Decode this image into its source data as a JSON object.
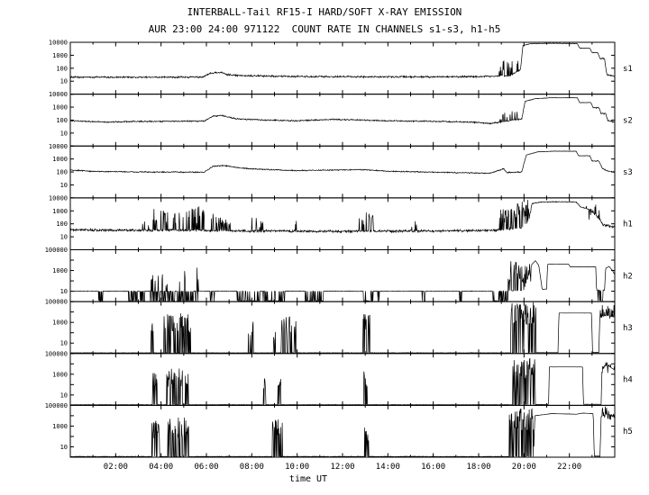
{
  "chart_data": {
    "type": "line",
    "title": "INTERBALL-Tail RF15-I HARD/SOFT X-RAY EMISSION",
    "subtitle": "AUR 23:00 24:00 971122  COUNT RATE IN CHANNELS s1-s3, h1-h5",
    "xlabel": "time UT",
    "y_scale": "log10",
    "background": "#ffffff",
    "axis_color": "#000000",
    "line_color": "#000000",
    "x_range_hours": [
      0,
      24
    ],
    "x_major_ticks": [
      {
        "hour": 2,
        "label": "02:00"
      },
      {
        "hour": 4,
        "label": "04:00"
      },
      {
        "hour": 6,
        "label": "06:00"
      },
      {
        "hour": 8,
        "label": "08:00"
      },
      {
        "hour": 10,
        "label": "10:00"
      },
      {
        "hour": 12,
        "label": "12:00"
      },
      {
        "hour": 14,
        "label": "14:00"
      },
      {
        "hour": 16,
        "label": "16:00"
      },
      {
        "hour": 18,
        "label": "18:00"
      },
      {
        "hour": 20,
        "label": "20:00"
      },
      {
        "hour": 22,
        "label": "22:00"
      }
    ],
    "panels": [
      {
        "id": "s1",
        "label": "s1",
        "log_range": [
          0,
          4
        ],
        "y_ticks": [
          10000,
          1000,
          100,
          10
        ],
        "noise": 0.08,
        "baseline": [
          [
            0,
            1.32
          ],
          [
            2,
            1.3
          ],
          [
            5.8,
            1.32
          ],
          [
            6.2,
            1.62
          ],
          [
            6.6,
            1.68
          ],
          [
            7.1,
            1.45
          ],
          [
            9,
            1.38
          ],
          [
            12,
            1.35
          ],
          [
            15,
            1.33
          ],
          [
            18,
            1.35
          ],
          [
            19.4,
            1.42
          ],
          [
            19.85,
            1.9
          ],
          [
            19.95,
            3.75
          ],
          [
            20.3,
            3.9
          ],
          [
            21.3,
            3.92
          ],
          [
            22.35,
            3.9
          ],
          [
            22.45,
            3.55
          ],
          [
            22.9,
            3.55
          ],
          [
            23.0,
            3.2
          ],
          [
            23.25,
            3.2
          ],
          [
            23.35,
            2.75
          ],
          [
            23.55,
            2.75
          ],
          [
            23.65,
            1.5
          ],
          [
            24,
            1.38
          ]
        ],
        "bursts": [
          [
            18.9,
            19.8,
            2.2,
            0.22,
            0.9
          ]
        ]
      },
      {
        "id": "s2",
        "label": "s2",
        "log_range": [
          0,
          4
        ],
        "y_ticks": [
          10000,
          1000,
          100,
          10
        ],
        "noise": 0.06,
        "baseline": [
          [
            0,
            1.95
          ],
          [
            1.5,
            1.85
          ],
          [
            3,
            1.9
          ],
          [
            5.9,
            1.92
          ],
          [
            6.3,
            2.3
          ],
          [
            6.7,
            2.35
          ],
          [
            7.3,
            2.1
          ],
          [
            8.5,
            2.0
          ],
          [
            10,
            1.95
          ],
          [
            11.5,
            2.05
          ],
          [
            12.5,
            2.02
          ],
          [
            14,
            1.95
          ],
          [
            16,
            1.9
          ],
          [
            17.5,
            1.85
          ],
          [
            18.6,
            1.75
          ],
          [
            19.3,
            1.95
          ],
          [
            19.9,
            2.1
          ],
          [
            20.05,
            3.45
          ],
          [
            20.5,
            3.65
          ],
          [
            21.2,
            3.72
          ],
          [
            22.35,
            3.72
          ],
          [
            22.45,
            3.35
          ],
          [
            22.95,
            3.35
          ],
          [
            23.05,
            2.95
          ],
          [
            23.3,
            2.95
          ],
          [
            23.4,
            2.5
          ],
          [
            23.6,
            2.5
          ],
          [
            23.7,
            1.95
          ],
          [
            24,
            1.85
          ]
        ],
        "bursts": [
          [
            18.9,
            19.7,
            2.35,
            0.18,
            0.7
          ]
        ]
      },
      {
        "id": "s3",
        "label": "s3",
        "log_range": [
          0,
          4
        ],
        "y_ticks": [
          10000,
          1000,
          100,
          10
        ],
        "noise": 0.05,
        "baseline": [
          [
            0,
            2.15
          ],
          [
            1,
            2.05
          ],
          [
            3,
            2.0
          ],
          [
            5.9,
            1.98
          ],
          [
            6.3,
            2.45
          ],
          [
            6.8,
            2.5
          ],
          [
            7.5,
            2.3
          ],
          [
            8.5,
            2.2
          ],
          [
            10,
            2.1
          ],
          [
            11.5,
            2.15
          ],
          [
            13,
            2.18
          ],
          [
            14,
            2.05
          ],
          [
            15.5,
            2.0
          ],
          [
            17,
            1.95
          ],
          [
            18.5,
            1.9
          ],
          [
            19.1,
            2.25
          ],
          [
            19.25,
            1.95
          ],
          [
            19.9,
            2.0
          ],
          [
            20.1,
            3.3
          ],
          [
            20.6,
            3.55
          ],
          [
            21.3,
            3.6
          ],
          [
            22.3,
            3.6
          ],
          [
            22.4,
            3.25
          ],
          [
            22.9,
            3.25
          ],
          [
            23.0,
            2.85
          ],
          [
            23.3,
            2.85
          ],
          [
            23.45,
            2.3
          ],
          [
            23.7,
            2.05
          ],
          [
            24,
            2.0
          ]
        ],
        "bursts": []
      },
      {
        "id": "h1",
        "label": "h1",
        "log_range": [
          0,
          4
        ],
        "y_ticks": [
          10000,
          1000,
          100,
          10
        ],
        "noise": 0.11,
        "baseline": [
          [
            0,
            1.55
          ],
          [
            2,
            1.5
          ],
          [
            5,
            1.5
          ],
          [
            8,
            1.45
          ],
          [
            12,
            1.42
          ],
          [
            16,
            1.45
          ],
          [
            18.8,
            1.5
          ],
          [
            19.9,
            1.7
          ],
          [
            20.2,
            2.2
          ],
          [
            20.35,
            3.55
          ],
          [
            20.7,
            3.68
          ],
          [
            21.5,
            3.7
          ],
          [
            22.3,
            3.68
          ],
          [
            22.5,
            3.3
          ],
          [
            22.9,
            3.1
          ],
          [
            23.2,
            2.6
          ],
          [
            23.5,
            1.9
          ],
          [
            24,
            1.75
          ]
        ],
        "bursts": [
          [
            3.1,
            3.5,
            2.3,
            0.3,
            1.0
          ],
          [
            3.6,
            4.3,
            2.6,
            0.32,
            1.2
          ],
          [
            4.5,
            5.0,
            2.5,
            0.3,
            1.1
          ],
          [
            5.1,
            5.9,
            2.7,
            0.3,
            1.3
          ],
          [
            6.2,
            7.1,
            2.3,
            0.32,
            1.0
          ],
          [
            7.9,
            8.5,
            2.1,
            0.28,
            0.9
          ],
          [
            9.8,
            10.1,
            1.9,
            0.28,
            0.7
          ],
          [
            12.7,
            13.4,
            2.4,
            0.32,
            1.0
          ],
          [
            15.0,
            15.3,
            1.9,
            0.22,
            0.6
          ],
          [
            18.9,
            19.6,
            2.6,
            0.4,
            1.2
          ],
          [
            19.6,
            20.3,
            3.2,
            0.5,
            1.4
          ],
          [
            22.7,
            23.4,
            2.9,
            0.32,
            1.2
          ]
        ]
      },
      {
        "id": "h2",
        "label": "h2",
        "log_range": [
          0,
          5
        ],
        "y_ticks": [
          100000,
          1000,
          10
        ],
        "noise": 0.03,
        "baseline": [
          [
            0,
            1.0
          ],
          [
            19.0,
            1.0
          ],
          [
            20.0,
            1.1
          ],
          [
            20.35,
            3.6
          ],
          [
            20.5,
            3.95
          ],
          [
            20.65,
            3.5
          ],
          [
            20.8,
            1.2
          ],
          [
            21.0,
            1.2
          ],
          [
            21.04,
            3.6
          ],
          [
            21.96,
            3.6
          ],
          [
            22.04,
            3.35
          ],
          [
            23.16,
            3.35
          ],
          [
            23.2,
            1.1
          ],
          [
            23.55,
            1.1
          ],
          [
            23.6,
            3.2
          ],
          [
            23.75,
            3.4
          ],
          [
            23.9,
            3.0
          ],
          [
            24,
            2.6
          ]
        ],
        "bursts": [
          [
            1.25,
            1.45,
            0.06,
            0.5,
            0.1
          ],
          [
            2.5,
            3.3,
            0.06,
            0.45,
            0.1
          ],
          [
            3.5,
            4.6,
            0.06,
            0.45,
            0.1
          ],
          [
            3.5,
            4.6,
            2.2,
            0.3,
            1.6
          ],
          [
            4.7,
            5.65,
            0.06,
            0.45,
            0.1
          ],
          [
            4.7,
            5.65,
            2.4,
            0.3,
            1.8
          ],
          [
            6.15,
            6.35,
            0.06,
            0.5,
            0.1
          ],
          [
            7.35,
            8.35,
            0.06,
            0.75,
            0.1
          ],
          [
            8.5,
            9.45,
            0.06,
            0.75,
            0.1
          ],
          [
            10.35,
            11.15,
            0.06,
            0.75,
            0.1
          ],
          [
            12.9,
            13.35,
            0.06,
            0.7,
            0.1
          ],
          [
            13.55,
            13.65,
            0.06,
            0.5,
            0.1
          ],
          [
            15.5,
            15.65,
            0.06,
            0.5,
            0.1
          ],
          [
            17.15,
            17.3,
            0.06,
            0.5,
            0.1
          ],
          [
            18.6,
            19.3,
            0.06,
            0.5,
            0.1
          ],
          [
            19.3,
            20.3,
            2.8,
            0.5,
            2.2
          ],
          [
            23.25,
            23.5,
            0.06,
            0.4,
            0.1
          ]
        ]
      },
      {
        "id": "h3",
        "label": "h3",
        "log_range": [
          0,
          5
        ],
        "y_ticks": [
          100000,
          1000,
          10
        ],
        "noise": 0.02,
        "baseline": [
          [
            0,
            0.06
          ],
          [
            19.3,
            0.06
          ],
          [
            20.6,
            0.08
          ],
          [
            21.5,
            0.08
          ],
          [
            21.54,
            3.9
          ],
          [
            22.98,
            3.9
          ],
          [
            23.02,
            0.1
          ],
          [
            23.3,
            0.1
          ],
          [
            23.34,
            3.4
          ],
          [
            23.6,
            3.7
          ],
          [
            24,
            3.5
          ]
        ],
        "bursts": [
          [
            3.55,
            3.75,
            2.6,
            0.5,
            1.8
          ],
          [
            4.1,
            5.3,
            2.9,
            0.5,
            2.0
          ],
          [
            7.85,
            8.1,
            2.3,
            0.55,
            1.6
          ],
          [
            8.95,
            9.05,
            1.9,
            0.6,
            1.2
          ],
          [
            9.3,
            9.95,
            2.7,
            0.5,
            1.8
          ],
          [
            12.9,
            13.25,
            2.9,
            0.55,
            1.8
          ],
          [
            19.4,
            20.55,
            3.9,
            0.6,
            2.2
          ],
          [
            23.35,
            24,
            4.0,
            0.5,
            1.6
          ]
        ]
      },
      {
        "id": "h4",
        "label": "h4",
        "log_range": [
          0,
          5
        ],
        "y_ticks": [
          100000,
          1000,
          10
        ],
        "noise": 0.02,
        "baseline": [
          [
            0,
            0.06
          ],
          [
            19.4,
            0.06
          ],
          [
            20.6,
            0.08
          ],
          [
            21.08,
            0.08
          ],
          [
            21.12,
            3.7
          ],
          [
            22.58,
            3.7
          ],
          [
            22.62,
            0.1
          ],
          [
            23.4,
            0.1
          ],
          [
            23.44,
            3.7
          ],
          [
            23.7,
            3.85
          ],
          [
            24,
            3.4
          ]
        ],
        "bursts": [
          [
            3.6,
            3.85,
            2.4,
            0.5,
            1.6
          ],
          [
            4.25,
            5.2,
            2.7,
            0.5,
            1.8
          ],
          [
            8.5,
            8.62,
            2.0,
            0.55,
            1.2
          ],
          [
            9.15,
            9.35,
            2.3,
            0.5,
            1.4
          ],
          [
            12.92,
            13.12,
            2.5,
            0.5,
            1.6
          ],
          [
            19.5,
            20.5,
            3.5,
            0.6,
            2.0
          ],
          [
            23.45,
            24,
            3.8,
            0.5,
            1.5
          ]
        ]
      },
      {
        "id": "h5",
        "label": "h5",
        "log_range": [
          0,
          5
        ],
        "y_ticks": [
          100000,
          1000,
          10
        ],
        "noise": 0.04,
        "baseline": [
          [
            0,
            0.06
          ],
          [
            19.3,
            0.06
          ],
          [
            20.42,
            0.08
          ],
          [
            20.48,
            4.0
          ],
          [
            21.2,
            4.2
          ],
          [
            22.3,
            4.15
          ],
          [
            22.6,
            4.25
          ],
          [
            23.05,
            4.2
          ],
          [
            23.1,
            0.1
          ],
          [
            23.35,
            0.1
          ],
          [
            23.4,
            3.9
          ],
          [
            23.7,
            4.2
          ],
          [
            24,
            3.8
          ]
        ],
        "bursts": [
          [
            3.6,
            3.95,
            2.7,
            0.5,
            1.8
          ],
          [
            4.3,
            5.3,
            2.9,
            0.5,
            2.0
          ],
          [
            8.9,
            9.35,
            2.9,
            0.55,
            1.8
          ],
          [
            12.95,
            13.15,
            2.3,
            0.5,
            1.4
          ],
          [
            19.35,
            20.42,
            3.6,
            0.6,
            2.2
          ],
          [
            23.4,
            24,
            4.2,
            0.45,
            1.4
          ]
        ]
      }
    ]
  }
}
